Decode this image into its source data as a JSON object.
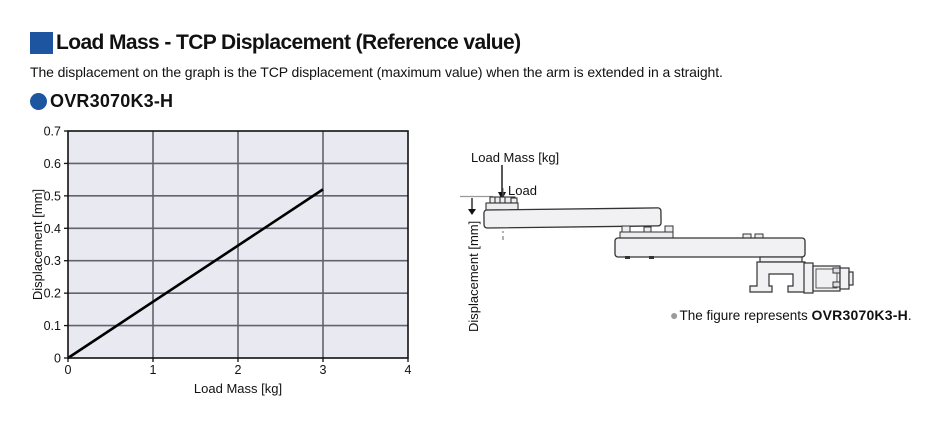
{
  "page": {
    "section_title": "Load Mass - TCP Displacement (Reference value)",
    "description": "The displacement on the graph is the TCP displacement (maximum value) when the arm is extended in a straight.",
    "model_heading": "OVR3070K3-H",
    "accent_color": "#1d55a1",
    "background_color": "#ffffff"
  },
  "chart_data": {
    "type": "line",
    "title": "",
    "xlabel": "Load Mass [kg]",
    "ylabel": "Displacement [mm]",
    "xlim": [
      0,
      4
    ],
    "ylim": [
      0,
      0.7
    ],
    "xticks": [
      0,
      1,
      2,
      3,
      4
    ],
    "yticks": [
      0,
      0.1,
      0.2,
      0.3,
      0.4,
      0.5,
      0.6,
      0.7
    ],
    "grid": true,
    "legend": "none",
    "plot_background": "#e9e9f2",
    "grid_color": "#63636e",
    "border_color": "#111111",
    "series": [
      {
        "name": "OVR3070K3-H",
        "color": "#000000",
        "x": [
          0,
          3
        ],
        "y": [
          0,
          0.52
        ]
      }
    ]
  },
  "figure": {
    "load_mass_label": "Load Mass [kg]",
    "load_label": "Load",
    "displacement_label": "Displacement [mm]",
    "caption_bullet": "●",
    "caption_bullet_color": "#9b9b9b",
    "caption_prefix": "The figure represents ",
    "caption_model": "OVR3070K3-H",
    "caption_suffix": "."
  }
}
